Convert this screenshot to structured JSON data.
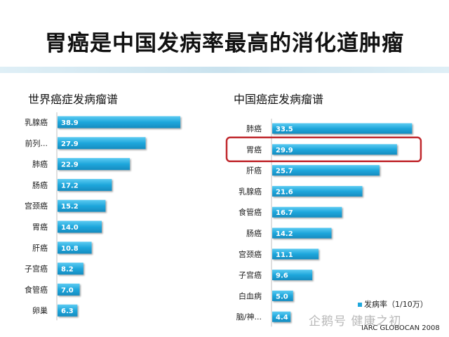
{
  "title": "胃癌是中国发病率最高的消化道肿瘤",
  "chart_data": [
    {
      "type": "bar",
      "orientation": "horizontal",
      "title": "世界癌症发病瘤谱",
      "categories": [
        "乳腺癌",
        "前列...",
        "肺癌",
        "肠癌",
        "宫颈癌",
        "胃癌",
        "肝癌",
        "子宫癌",
        "食管癌",
        "卵巢"
      ],
      "values": [
        38.9,
        27.9,
        22.9,
        17.2,
        15.2,
        14.0,
        10.8,
        8.2,
        7.0,
        6.3
      ],
      "value_labels": [
        "38.9",
        "27.9",
        "22.9",
        "17.2",
        "15.2",
        "14.0",
        "10.8",
        "8.2",
        "7.0",
        "6.3"
      ],
      "xlim": [
        0,
        40
      ],
      "bar_color": "#1fa7dc"
    },
    {
      "type": "bar",
      "orientation": "horizontal",
      "title": "中国癌症发病瘤谱",
      "categories": [
        "肺癌",
        "胃癌",
        "肝癌",
        "乳腺癌",
        "食管癌",
        "肠癌",
        "宫颈癌",
        "子宫癌",
        "白血病",
        "脑/神..."
      ],
      "values": [
        33.5,
        29.9,
        25.7,
        21.6,
        16.7,
        14.2,
        11.1,
        9.6,
        5.0,
        4.4
      ],
      "value_labels": [
        "33.5",
        "29.9",
        "25.7",
        "21.6",
        "16.7",
        "14.2",
        "11.1",
        "9.6",
        "5.0",
        "4.4"
      ],
      "xlim": [
        0,
        35
      ],
      "highlight": "胃癌",
      "highlight_color": "#c0282d",
      "legend": "发病率（1/10万）",
      "legend_position": "bottom-right",
      "bar_color": "#1fa7dc"
    }
  ],
  "watermark": "企鹅号 健康之初",
  "source": "IARC GLOBOCAN 2008"
}
